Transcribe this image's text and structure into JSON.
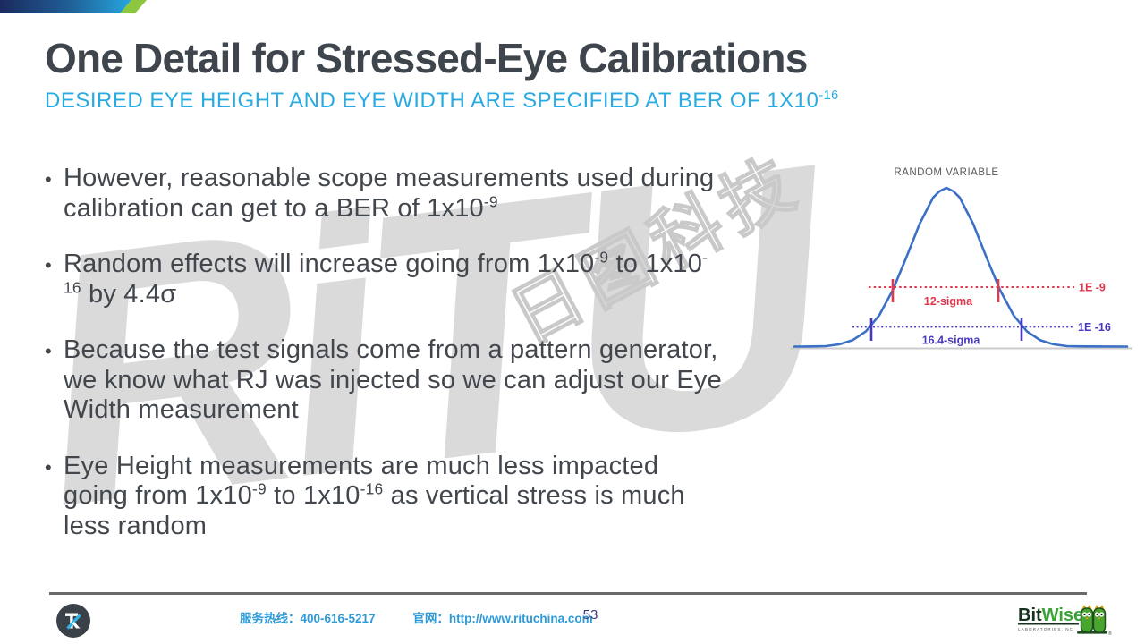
{
  "title": "One Detail for Stressed-Eye Calibrations",
  "subtitle": {
    "text": "DESIRED EYE HEIGHT AND EYE WIDTH ARE SPECIFIED AT BER OF 1X10",
    "sup": "-16"
  },
  "bullets": [
    {
      "lines": [
        [
          {
            "t": "However, reasonable scope measurements used during"
          }
        ],
        [
          {
            "t": "calibration can get to a BER of 1x10"
          },
          {
            "sup": "-9"
          }
        ]
      ]
    },
    {
      "lines": [
        [
          {
            "t": "Random effects will increase going from 1x10"
          },
          {
            "sup": "-9"
          },
          {
            "t": " to 1x10"
          },
          {
            "sup": "-"
          }
        ],
        [
          {
            "sup": "16"
          },
          {
            "t": " by 4.4σ"
          }
        ]
      ]
    },
    {
      "lines": [
        [
          {
            "t": "Because the test signals come from a pattern generator,"
          }
        ],
        [
          {
            "t": "we know what RJ was injected so we can adjust our Eye"
          }
        ],
        [
          {
            "t": "Width measurement"
          }
        ]
      ]
    },
    {
      "lines": [
        [
          {
            "t": "Eye Height measurements are much less impacted"
          }
        ],
        [
          {
            "t": "going from 1x10"
          },
          {
            "sup": "-9"
          },
          {
            "t": " to 1x10"
          },
          {
            "sup": "-16"
          },
          {
            "t": " as vertical stress is much"
          }
        ],
        [
          {
            "t": "less random"
          }
        ]
      ]
    }
  ],
  "watermark": {
    "latin": "RiTU",
    "cjk": "日图科技"
  },
  "diagram": {
    "title": "RANDOM VARIABLE",
    "ber9": {
      "sigma_label": "12-sigma",
      "level_label": "1E -9",
      "color": "#e0384e"
    },
    "ber16": {
      "sigma_label": "16.4-sigma",
      "level_label": "1E -16",
      "color": "#4639c0"
    },
    "curve_color": "#3c6fc6"
  },
  "footer": {
    "hotline_label": "服务热线：",
    "hotline": "400-616-5217",
    "website_label": "官网：",
    "website": "http://www.rituchina.com",
    "page_number": "53",
    "bitwise": {
      "bit": "Bit",
      "wise": "Wise",
      "sub": "LABORATORIES,INC",
      "reg": "®"
    }
  },
  "colors": {
    "title_text": "#3f454c",
    "subtitle_accent": "#29abe2",
    "body_text": "#42474e",
    "banner_navy": "#1b2a5e",
    "banner_cyan": "#27a9e1",
    "banner_green": "#8dc63f",
    "watermark_gray": "#dadada",
    "footer_blue": "#2e9ad6",
    "bitwise_green": "#3aa335"
  }
}
